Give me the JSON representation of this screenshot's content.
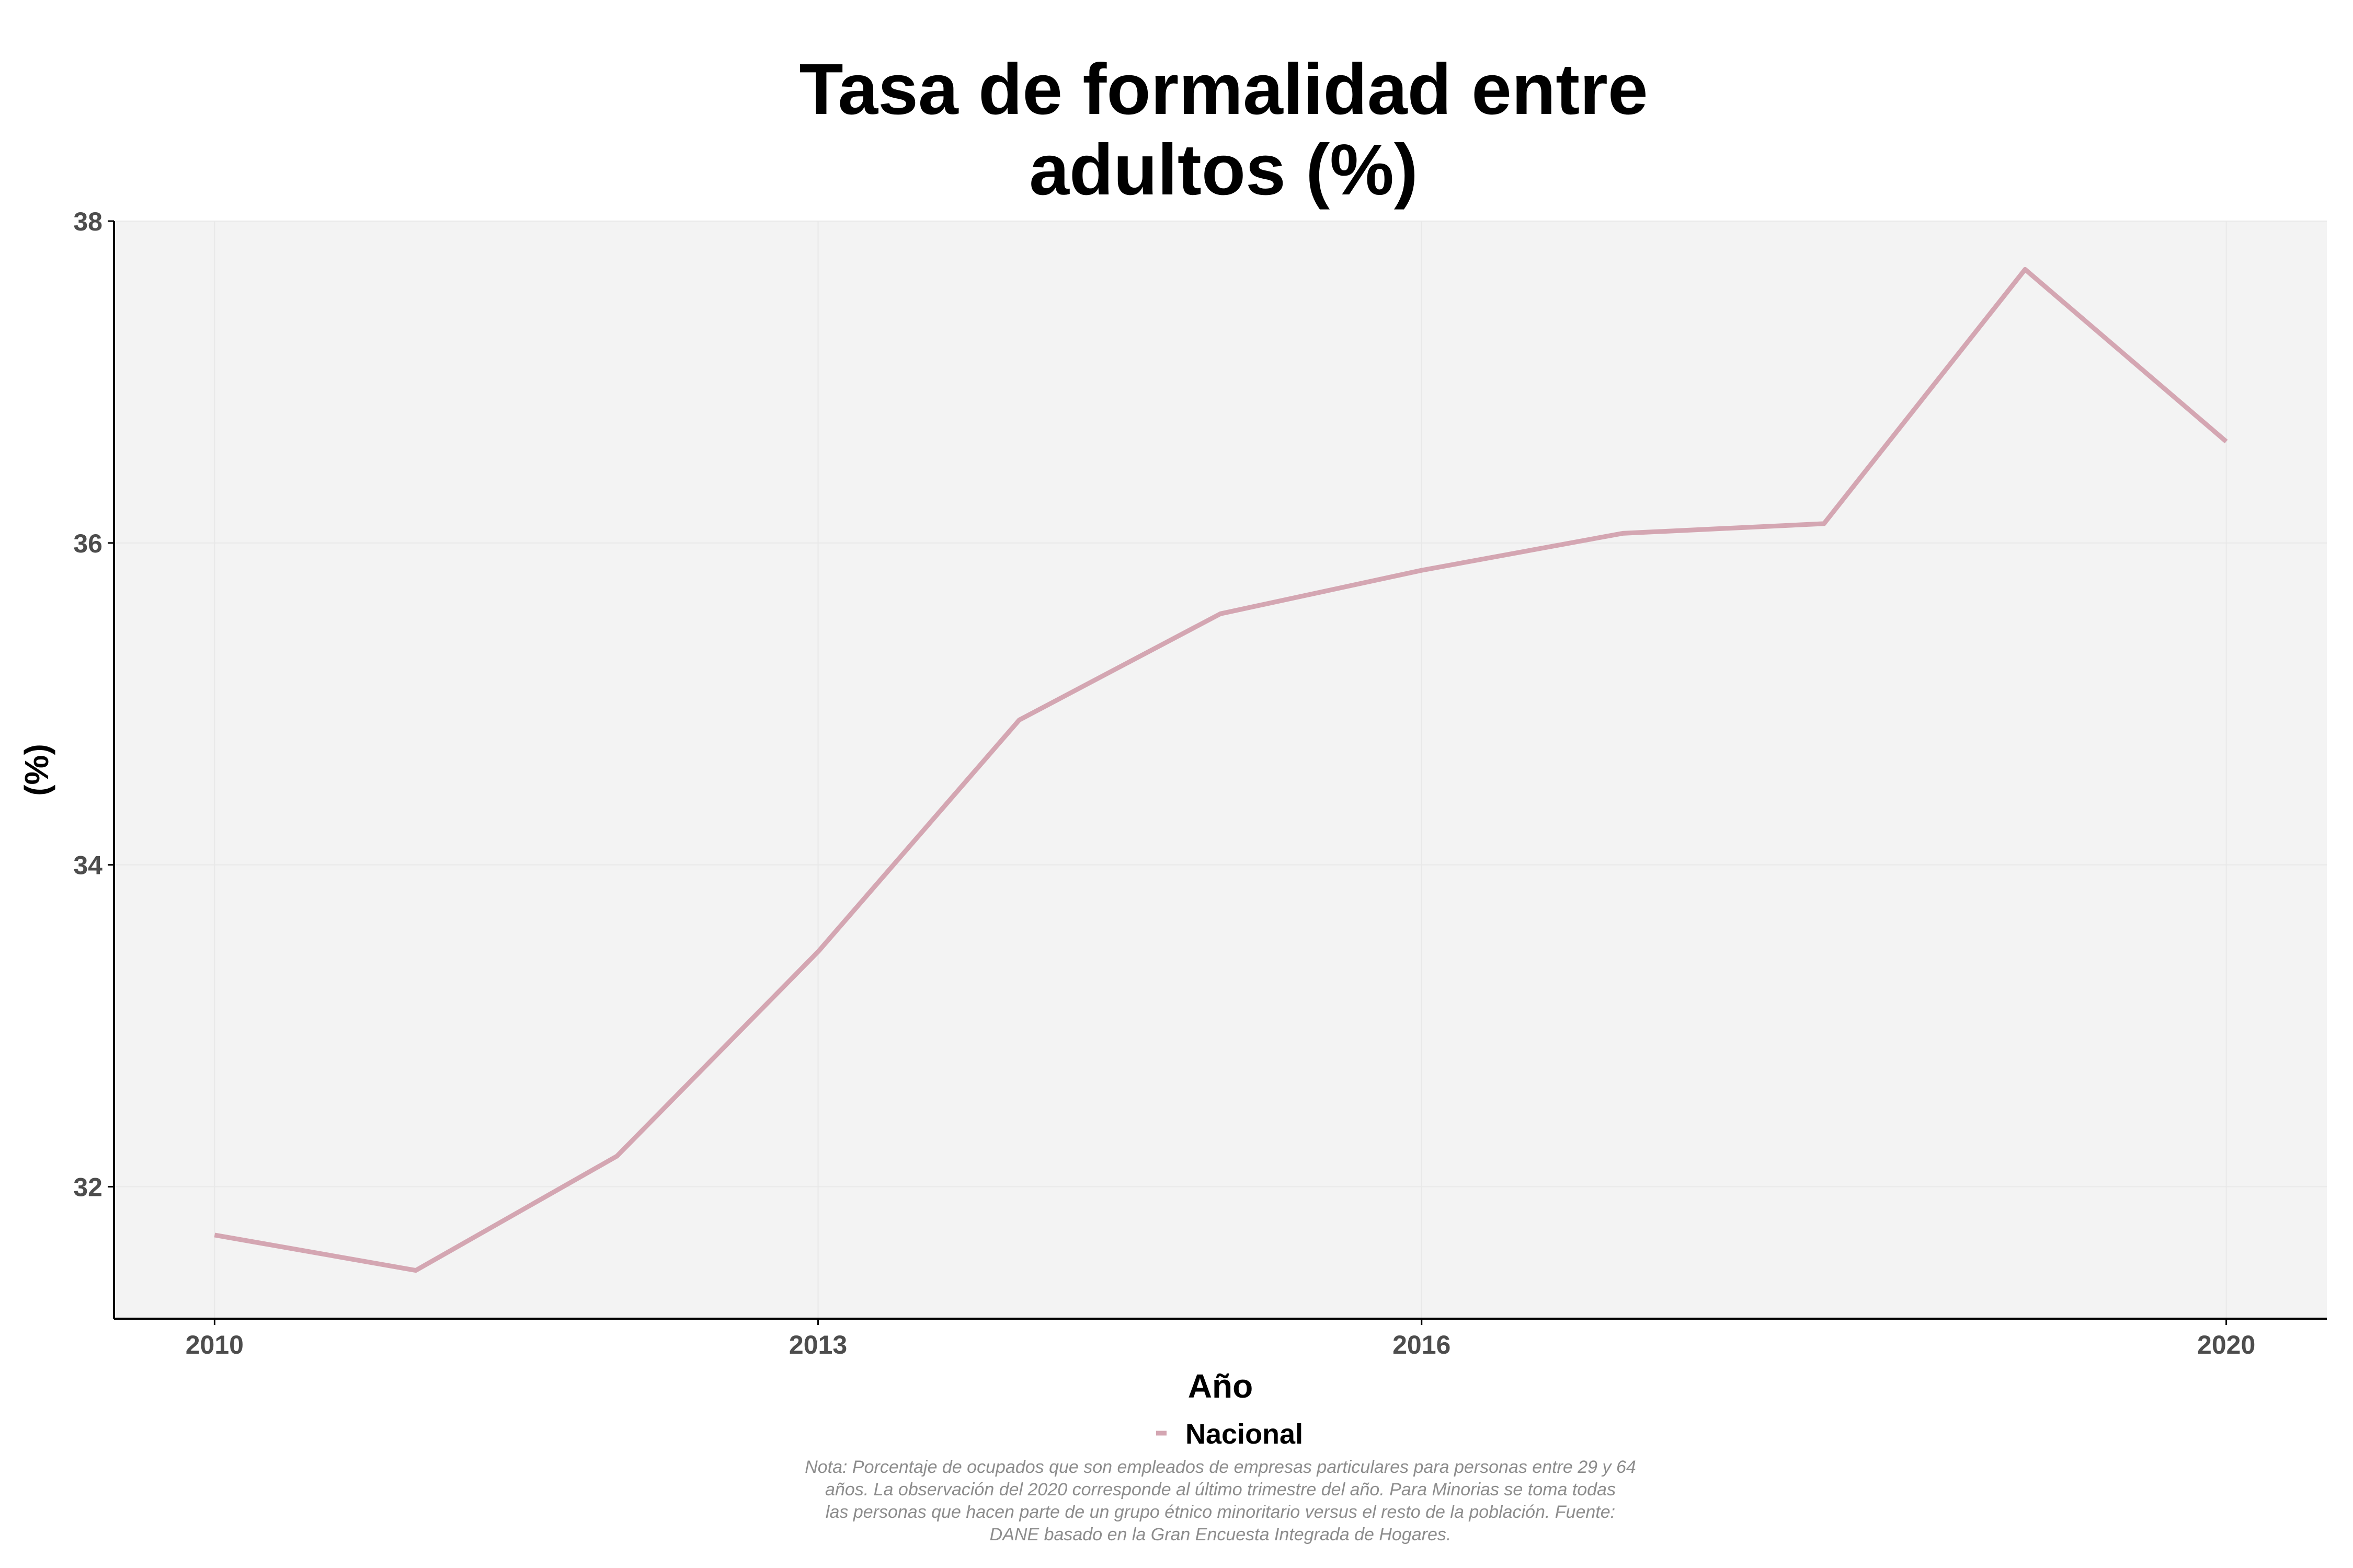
{
  "chart_data": {
    "type": "line",
    "title_lines": [
      "Tasa de formalidad entre",
      "adultos (%)"
    ],
    "xlabel": "Año",
    "ylabel": "(%)",
    "x": [
      2010,
      2011,
      2012,
      2013,
      2014,
      2015,
      2016,
      2017,
      2018,
      2019,
      2020
    ],
    "series": [
      {
        "name": "Nacional",
        "color": "#d4a6b2",
        "values": [
          31.7,
          31.48,
          32.19,
          33.46,
          34.9,
          35.56,
          35.83,
          36.06,
          36.12,
          37.7,
          36.63
        ]
      }
    ],
    "xticks": [
      "2010",
      "2013",
      "2016",
      "2020"
    ],
    "yticks": [
      "32",
      "34",
      "36",
      "38"
    ],
    "xlim": [
      2009.5,
      2020.5
    ],
    "ylim": [
      31.18,
      38
    ],
    "grid": true,
    "legend_position": "bottom",
    "note_lines": [
      "Nota: Porcentaje de ocupados que son empleados de empresas particulares para personas entre 29 y 64",
      "años. La observación del 2020 corresponde al último trimestre del año. Para Minorias se toma todas",
      "las personas que hacen parte de un grupo étnico minoritario versus el resto de la población. Fuente:",
      "DANE basado en la Gran Encuesta Integrada de Hogares."
    ]
  },
  "colors": {
    "panel_background": "#f3f3f3",
    "grid": "#e8e8e8",
    "axis": "#000000"
  }
}
